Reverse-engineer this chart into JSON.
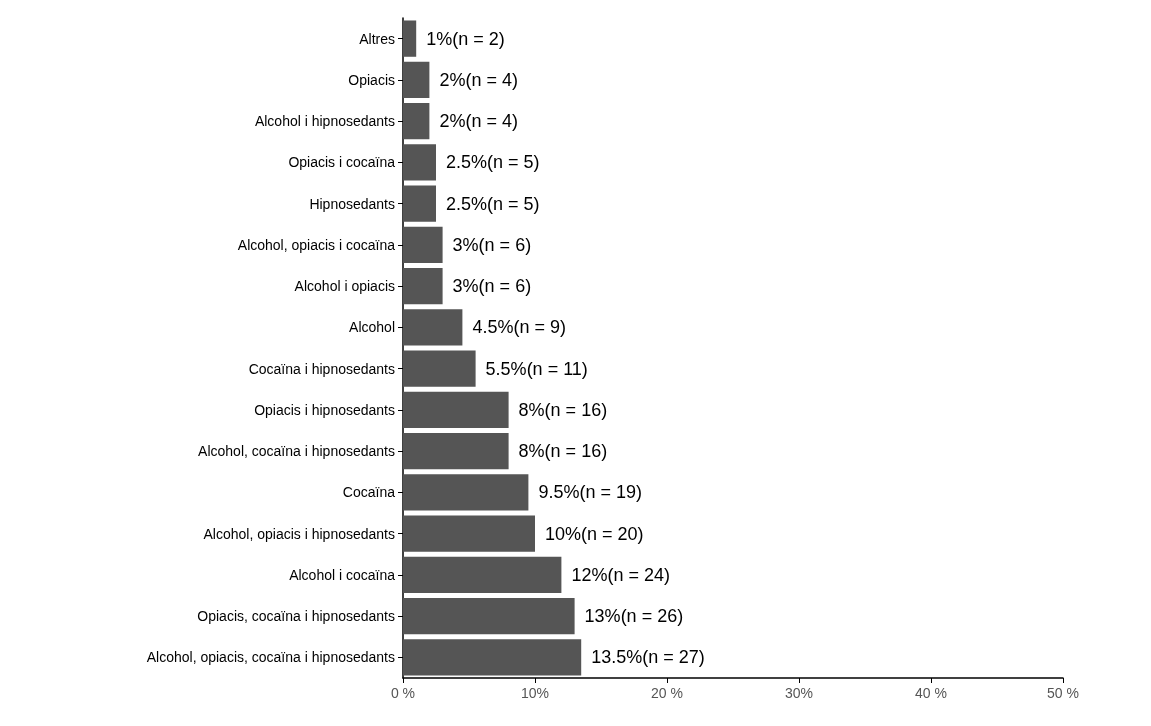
{
  "chart_data": {
    "type": "bar",
    "orientation": "horizontal",
    "categories": [
      "Altres",
      "Opiacis",
      "Alcohol i hipnosedants",
      "Opiacis i cocaïna",
      "Hipnosedants",
      "Alcohol, opiacis i cocaïna",
      "Alcohol i opiacis",
      "Alcohol",
      "Cocaïna i hipnosedants",
      "Opiacis i hipnosedants",
      "Alcohol, cocaïna i hipnosedants",
      "Cocaïna",
      "Alcohol, opiacis i hipnosedants",
      "Alcohol i cocaïna",
      "Opiacis, cocaïna i hipnosedants",
      "Alcohol, opiacis, cocaïna i hipnosedants"
    ],
    "values": [
      1,
      2,
      2,
      2.5,
      2.5,
      3,
      3,
      4.5,
      5.5,
      8,
      8,
      9.5,
      10,
      12,
      13,
      13.5
    ],
    "value_labels": [
      "1%(n = 2)",
      "2%(n = 4)",
      "2%(n = 4)",
      "2.5%(n = 5)",
      "2.5%(n = 5)",
      "3%(n = 6)",
      "3%(n = 6)",
      "4.5%(n = 9)",
      "5.5%(n = 11)",
      "8%(n = 16)",
      "8%(n = 16)",
      "9.5%(n = 19)",
      "10%(n = 20)",
      "12%(n = 24)",
      "13%(n = 26)",
      "13.5%(n = 27)"
    ],
    "color": "#555555",
    "xlim": [
      0,
      50
    ],
    "xticks": [
      {
        "value": 0,
        "label": "0 %"
      },
      {
        "value": 10,
        "label": "10%"
      },
      {
        "value": 20,
        "label": "20 %"
      },
      {
        "value": 30,
        "label": "30%"
      },
      {
        "value": 40,
        "label": "40 %"
      },
      {
        "value": 50,
        "label": "50 %"
      }
    ],
    "grid": false
  }
}
